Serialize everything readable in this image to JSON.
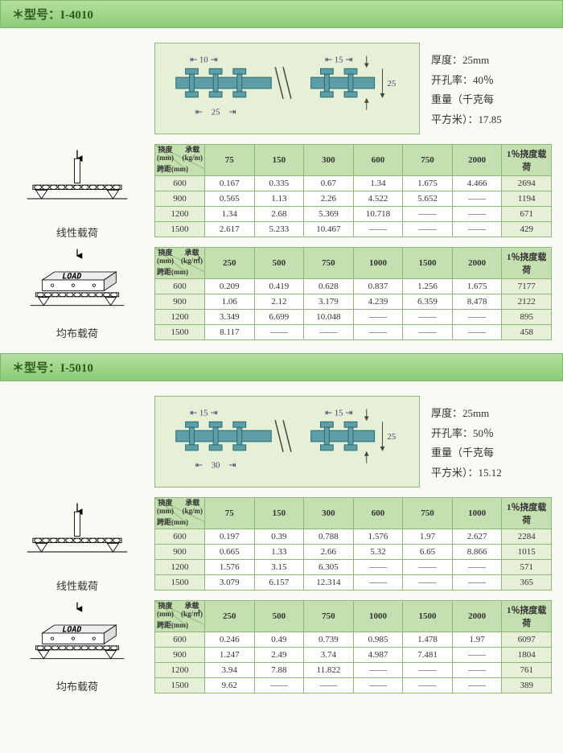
{
  "models": [
    {
      "title": "＊型号：I-4010",
      "profile": {
        "flange_w": 10,
        "flange_gap": 15,
        "depth": 25,
        "pitch": 25,
        "bg": "#e6f0d6",
        "beam_fill": "#5d9ea8",
        "beam_edge": "#2c6a72"
      },
      "specs": {
        "thickness": "厚度：25mm",
        "open": "开孔率：40％",
        "weight_l1": "重量（千克每",
        "weight_l2": "平方米）：17.85"
      },
      "linear_label": "线性载荷",
      "uniform_label": "均布载荷",
      "linear": {
        "corner": {
          "top": "挠度\n(mm)",
          "mid": "承载\n(kg/m)",
          "bot": "跨距(mm)"
        },
        "cols": [
          "75",
          "150",
          "300",
          "600",
          "750",
          "2000",
          "1％挠度载荷"
        ],
        "rows": [
          [
            "600",
            "0.167",
            "0.335",
            "0.67",
            "1.34",
            "1.675",
            "4.466",
            "2694"
          ],
          [
            "900",
            "0.565",
            "1.13",
            "2.26",
            "4.522",
            "5.652",
            "——",
            "1194"
          ],
          [
            "1200",
            "1.34",
            "2.68",
            "5.369",
            "10.718",
            "——",
            "——",
            "671"
          ],
          [
            "1500",
            "2.617",
            "5.233",
            "10.467",
            "——",
            "——",
            "——",
            "429"
          ]
        ]
      },
      "uniform": {
        "corner": {
          "top": "挠度\n(mm)",
          "mid": "承载\n(kg/㎡)",
          "bot": "跨距(mm)"
        },
        "cols": [
          "250",
          "500",
          "750",
          "1000",
          "1500",
          "2000",
          "1％挠度载荷"
        ],
        "rows": [
          [
            "600",
            "0.209",
            "0.419",
            "0.628",
            "0.837",
            "1.256",
            "1.675",
            "7177"
          ],
          [
            "900",
            "1.06",
            "2.12",
            "3.179",
            "4.239",
            "6.359",
            "8.478",
            "2122"
          ],
          [
            "1200",
            "3.349",
            "6.699",
            "10.048",
            "——",
            "——",
            "——",
            "895"
          ],
          [
            "1500",
            "8.117",
            "——",
            "——",
            "——",
            "——",
            "——",
            "458"
          ]
        ]
      }
    },
    {
      "title": "＊型号：I-5010",
      "profile": {
        "flange_w": 15,
        "flange_gap": 15,
        "depth": 25,
        "pitch": 30,
        "bg": "#e6f0d6",
        "beam_fill": "#5d9ea8",
        "beam_edge": "#2c6a72"
      },
      "specs": {
        "thickness": "厚度：25mm",
        "open": "开孔率：50％",
        "weight_l1": "重量（千克每",
        "weight_l2": "平方米）：15.12"
      },
      "linear_label": "线性载荷",
      "uniform_label": "均布载荷",
      "linear": {
        "corner": {
          "top": "挠度\n(mm)",
          "mid": "承载\n(kg/m)",
          "bot": "跨距(mm)"
        },
        "cols": [
          "75",
          "150",
          "300",
          "600",
          "750",
          "1000",
          "1％挠度载荷"
        ],
        "rows": [
          [
            "600",
            "0.197",
            "0.39",
            "0.788",
            "1.576",
            "1.97",
            "2.627",
            "2284"
          ],
          [
            "900",
            "0.665",
            "1.33",
            "2.66",
            "5.32",
            "6.65",
            "8.866",
            "1015"
          ],
          [
            "1200",
            "1.576",
            "3.15",
            "6.305",
            "——",
            "——",
            "——",
            "571"
          ],
          [
            "1500",
            "3.079",
            "6.157",
            "12.314",
            "——",
            "——",
            "——",
            "365"
          ]
        ]
      },
      "uniform": {
        "corner": {
          "top": "挠度\n(mm)",
          "mid": "承载\n(kg/㎡)",
          "bot": "跨距(mm)"
        },
        "cols": [
          "250",
          "500",
          "750",
          "1000",
          "1500",
          "2000",
          "1％挠度载荷"
        ],
        "rows": [
          [
            "600",
            "0.246",
            "0.49",
            "0.739",
            "0.985",
            "1.478",
            "1.97",
            "6097"
          ],
          [
            "900",
            "1.247",
            "2.49",
            "3.74",
            "4.987",
            "7.481",
            "——",
            "1804"
          ],
          [
            "1200",
            "3.94",
            "7.88",
            "11.822",
            "——",
            "——",
            "——",
            "761"
          ],
          [
            "1500",
            "9.62",
            "——",
            "——",
            "——",
            "——",
            "——",
            "389"
          ]
        ]
      }
    }
  ],
  "load_box_text": "LOAD"
}
